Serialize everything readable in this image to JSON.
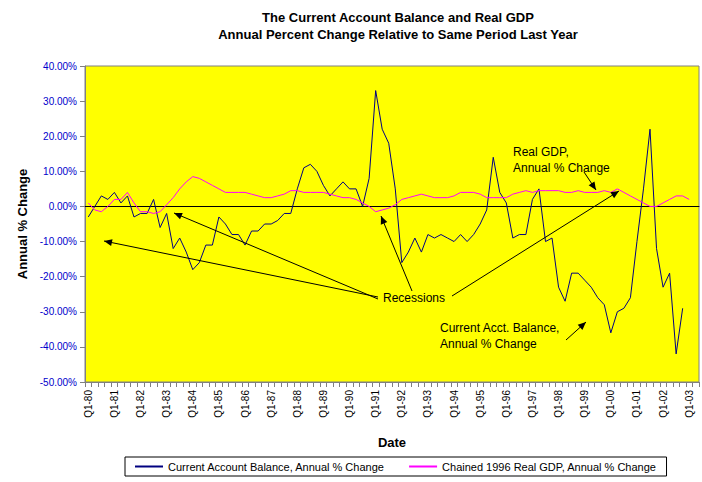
{
  "chart_data": {
    "type": "line",
    "title": "The Current Account Balance and Real GDP",
    "subtitle": "Annual Percent Change Relative to Same Period Last Year",
    "x_label": "Date",
    "y_label": "Annual % Change",
    "categories": [
      "Q1-80",
      null,
      null,
      null,
      "Q1-81",
      null,
      null,
      null,
      "Q1-82",
      null,
      null,
      null,
      "Q1-83",
      null,
      null,
      null,
      "Q1-84",
      null,
      null,
      null,
      "Q1-85",
      null,
      null,
      null,
      "Q1-86",
      null,
      null,
      null,
      "Q1-87",
      null,
      null,
      null,
      "Q1-88",
      null,
      null,
      null,
      "Q1-89",
      null,
      null,
      null,
      "Q1-90",
      null,
      null,
      null,
      "Q1-91",
      null,
      null,
      null,
      "Q1-92",
      null,
      null,
      null,
      "Q1-93",
      null,
      null,
      null,
      "Q1-94",
      null,
      null,
      null,
      "Q1-95",
      null,
      null,
      null,
      "Q1-96",
      null,
      null,
      null,
      "Q1-97",
      null,
      null,
      null,
      "Q1-98",
      null,
      null,
      null,
      "Q1-99",
      null,
      null,
      null,
      "Q1-00",
      null,
      null,
      null,
      "Q1-01",
      null,
      null,
      null,
      "Q1-02",
      null,
      null,
      null,
      "Q1-03",
      null
    ],
    "series": [
      {
        "name": "Current Account Balance, Annual % Change",
        "color": "#000080",
        "values": [
          -3,
          0,
          3,
          2,
          4,
          1,
          3,
          -3,
          -2,
          -2,
          2,
          -6,
          -2,
          -12,
          -9,
          -13,
          -18,
          -16,
          -11,
          -11,
          -3,
          -5,
          -8,
          -8,
          -11,
          -7,
          -7,
          -5,
          -5,
          -4,
          -2,
          -2,
          5,
          11,
          12,
          10,
          6,
          3,
          5,
          7,
          5,
          5,
          0,
          8,
          33,
          22,
          18,
          5,
          -16,
          -13,
          -9,
          -13,
          -8,
          -9,
          -8,
          -9,
          -10,
          -8,
          -10,
          -8,
          -5,
          -1,
          14,
          4,
          1,
          -9,
          -8,
          -8,
          2,
          5,
          -10,
          -9,
          -23,
          -27,
          -19,
          -19,
          -21,
          -23,
          -26,
          -28,
          -36,
          -30,
          -29,
          -26,
          -10,
          5,
          22,
          -12,
          -23,
          -19,
          -42,
          -29,
          null,
          null
        ]
      },
      {
        "name": "Chained 1996 Real GDP, Annual % Change",
        "color": "#ff00ff",
        "values": [
          1,
          -1,
          -1.5,
          0,
          2,
          2,
          4,
          1,
          -1.5,
          -1.5,
          -2,
          -1.5,
          0.5,
          2.5,
          5,
          7,
          8.5,
          8,
          7,
          6,
          5,
          4,
          4,
          4,
          4,
          3.5,
          3,
          2.5,
          2.5,
          3,
          3.5,
          4.5,
          4.5,
          4,
          4,
          4,
          4,
          3.5,
          3,
          2.5,
          2.5,
          2,
          1,
          0,
          -1.5,
          -1,
          -0.5,
          0.5,
          2,
          2.5,
          3,
          3.5,
          3,
          2.5,
          2.5,
          2.5,
          3,
          4,
          4,
          4,
          3.5,
          2.5,
          2.5,
          2.5,
          2.5,
          3.5,
          4,
          4.5,
          4,
          4.5,
          4.5,
          4.5,
          4.5,
          4,
          4,
          4.5,
          4,
          4,
          4,
          4.5,
          4,
          5,
          4,
          3,
          2,
          1,
          0,
          0,
          1,
          2,
          3,
          3,
          2,
          null
        ]
      }
    ],
    "ylim": [
      -50,
      40
    ],
    "yticks": [
      {
        "value": -50,
        "label": "-50.00%"
      },
      {
        "value": -40,
        "label": "-40.00%"
      },
      {
        "value": -30,
        "label": "-30.00%"
      },
      {
        "value": -20,
        "label": "-20.00%"
      },
      {
        "value": -10,
        "label": "-10.00%"
      },
      {
        "value": 0,
        "label": "0.00%"
      },
      {
        "value": 10,
        "label": "10.00%"
      },
      {
        "value": 20,
        "label": "20.00%"
      },
      {
        "value": 30,
        "label": "30.00%"
      },
      {
        "value": 40,
        "label": "40.00%"
      }
    ],
    "grid": false,
    "legend": "bottom",
    "annotations": [
      {
        "text": "Recessions"
      },
      {
        "text": "Real GDP,\nAnnual % Change"
      },
      {
        "text": "Current Acct. Balance,\nAnnual % Change"
      }
    ]
  }
}
